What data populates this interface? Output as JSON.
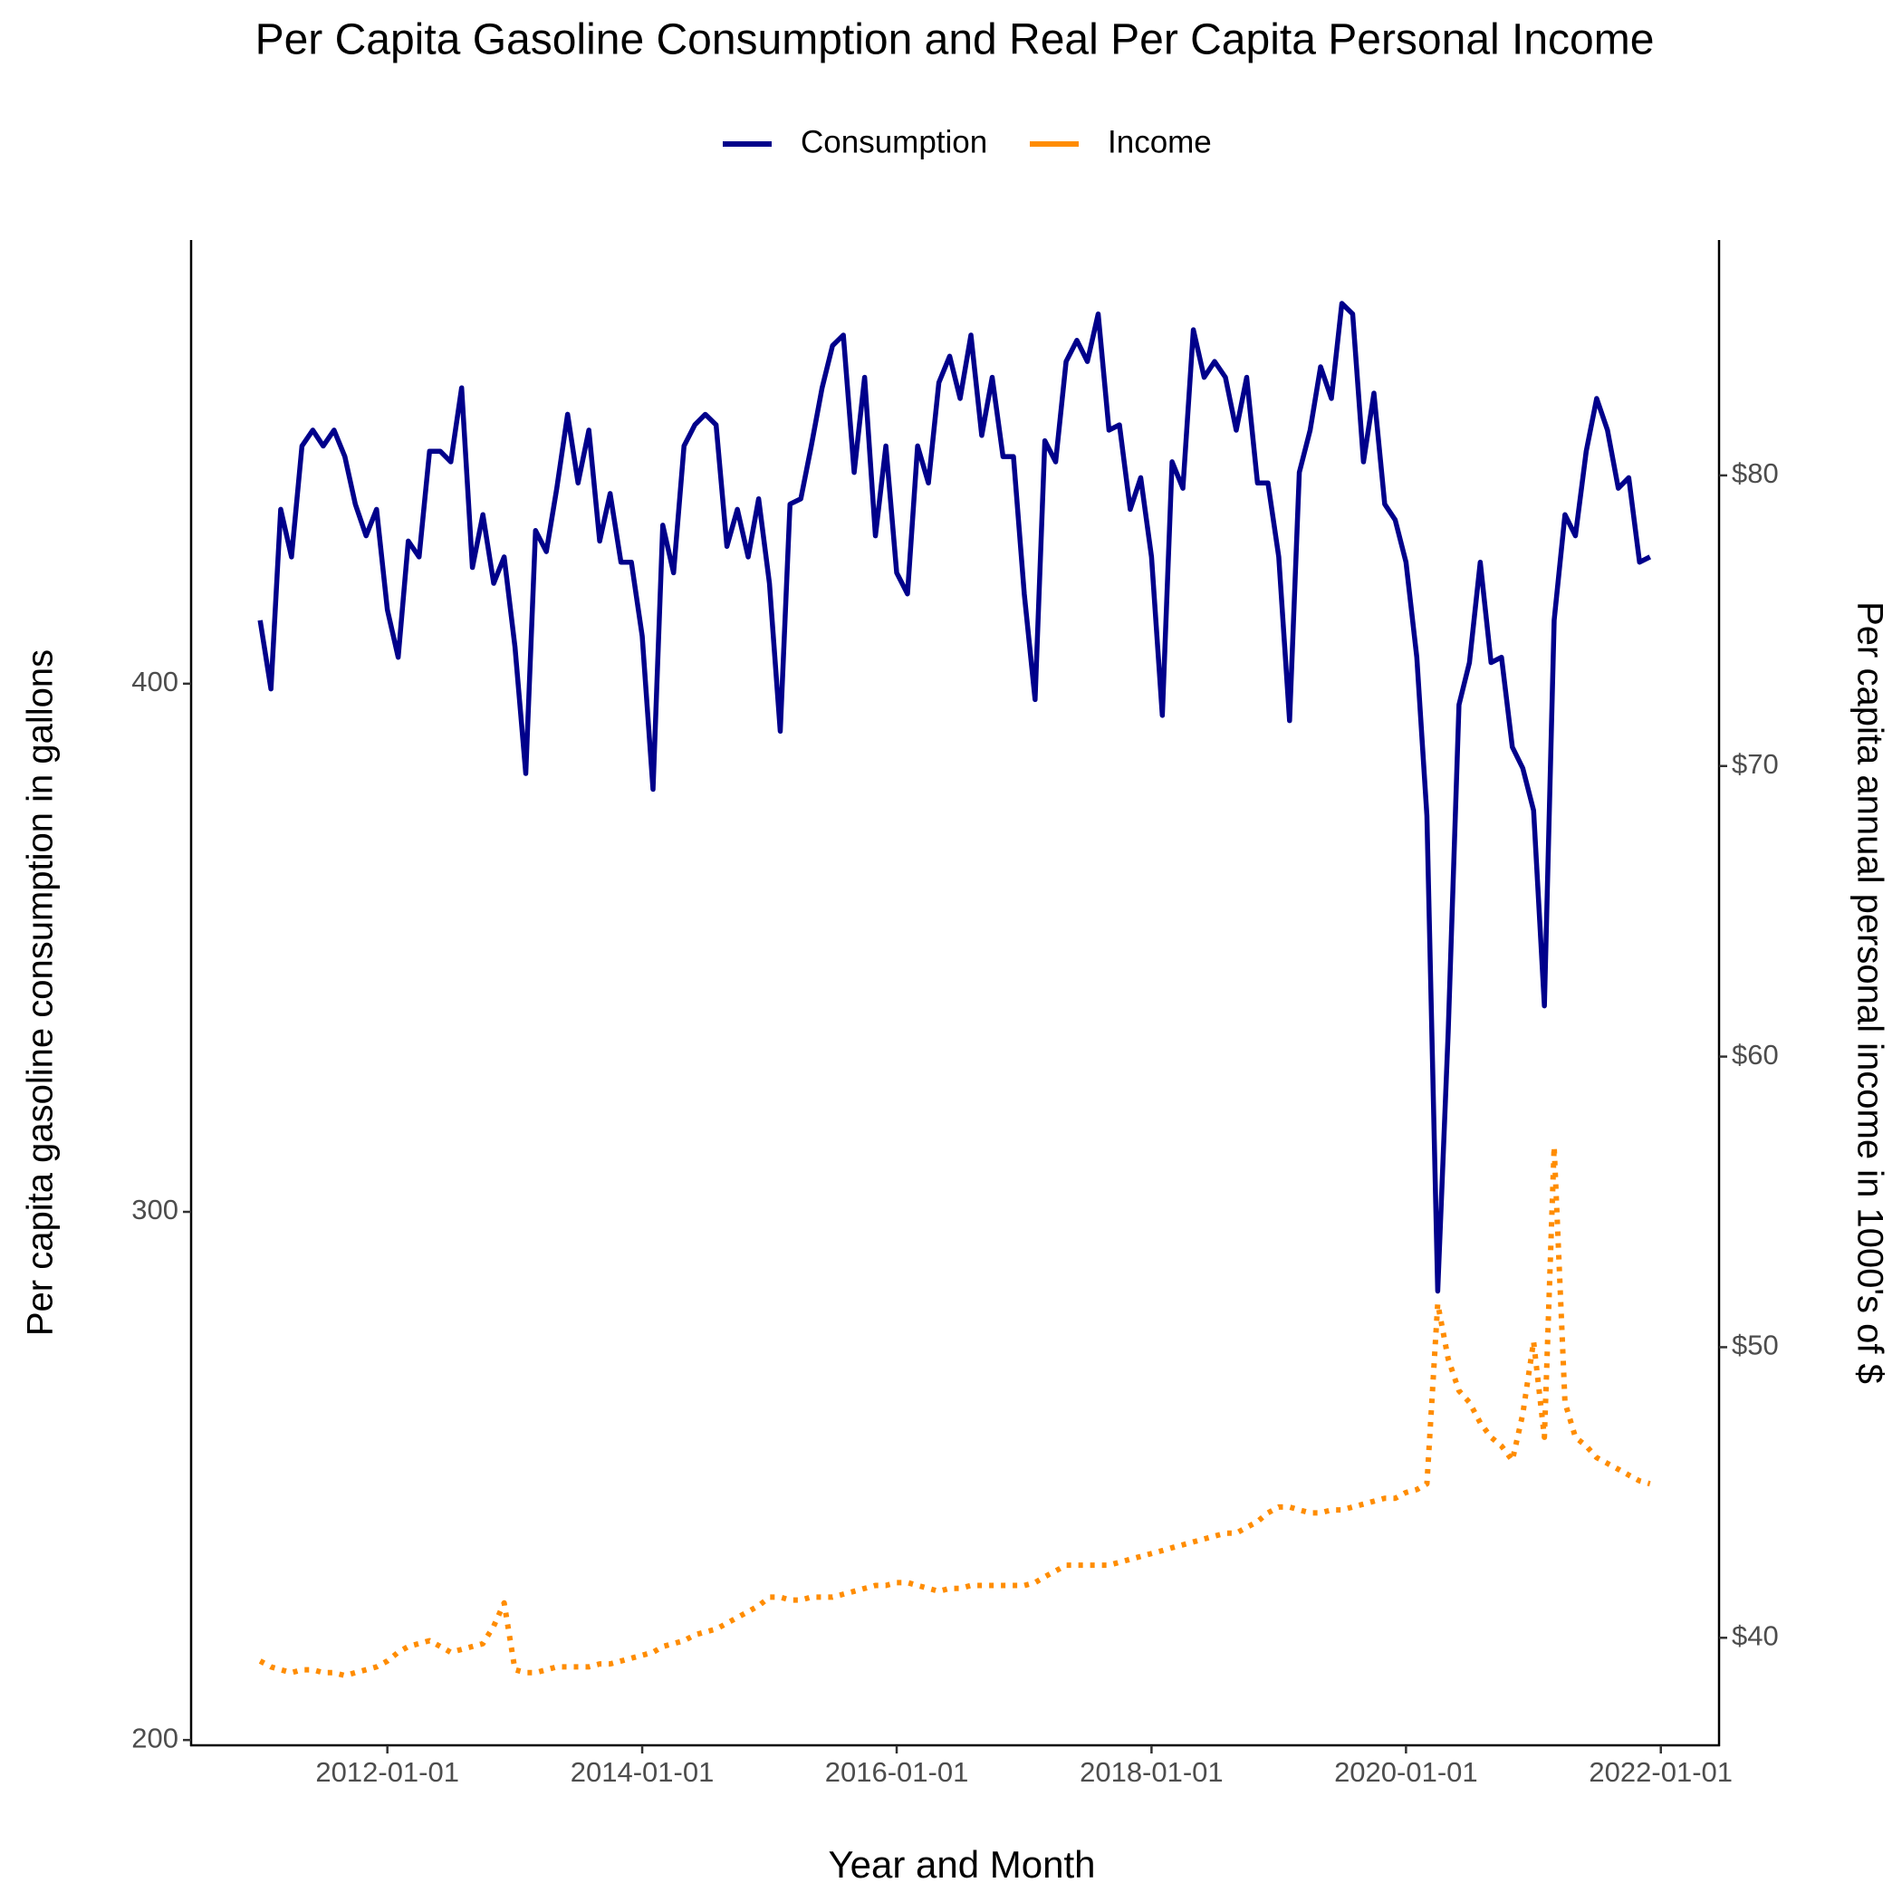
{
  "chart_data": {
    "type": "line",
    "title": "Per Capita Gasoline Consumption and Real Per Capita Personal Income",
    "xlabel": "Year and Month",
    "ylabel": "Per capita gasoline consumption in gallons",
    "y2label": "Per capita annual personal income in 1000's of $",
    "legend": "top",
    "grid": false,
    "x": [
      "2011-01-01",
      "2011-02-01",
      "2011-03-01",
      "2011-04-01",
      "2011-05-01",
      "2011-06-01",
      "2011-07-01",
      "2011-08-01",
      "2011-09-01",
      "2011-10-01",
      "2011-11-01",
      "2011-12-01",
      "2012-01-01",
      "2012-02-01",
      "2012-03-01",
      "2012-04-01",
      "2012-05-01",
      "2012-06-01",
      "2012-07-01",
      "2012-08-01",
      "2012-09-01",
      "2012-10-01",
      "2012-11-01",
      "2012-12-01",
      "2013-01-01",
      "2013-02-01",
      "2013-03-01",
      "2013-04-01",
      "2013-05-01",
      "2013-06-01",
      "2013-07-01",
      "2013-08-01",
      "2013-09-01",
      "2013-10-01",
      "2013-11-01",
      "2013-12-01",
      "2014-01-01",
      "2014-02-01",
      "2014-03-01",
      "2014-04-01",
      "2014-05-01",
      "2014-06-01",
      "2014-07-01",
      "2014-08-01",
      "2014-09-01",
      "2014-10-01",
      "2014-11-01",
      "2014-12-01",
      "2015-01-01",
      "2015-02-01",
      "2015-03-01",
      "2015-04-01",
      "2015-05-01",
      "2015-06-01",
      "2015-07-01",
      "2015-08-01",
      "2015-09-01",
      "2015-10-01",
      "2015-11-01",
      "2015-12-01",
      "2016-01-01",
      "2016-02-01",
      "2016-03-01",
      "2016-04-01",
      "2016-05-01",
      "2016-06-01",
      "2016-07-01",
      "2016-08-01",
      "2016-09-01",
      "2016-10-01",
      "2016-11-01",
      "2016-12-01",
      "2017-01-01",
      "2017-02-01",
      "2017-03-01",
      "2017-04-01",
      "2017-05-01",
      "2017-06-01",
      "2017-07-01",
      "2017-08-01",
      "2017-09-01",
      "2017-10-01",
      "2017-11-01",
      "2017-12-01",
      "2018-01-01",
      "2018-02-01",
      "2018-03-01",
      "2018-04-01",
      "2018-05-01",
      "2018-06-01",
      "2018-07-01",
      "2018-08-01",
      "2018-09-01",
      "2018-10-01",
      "2018-11-01",
      "2018-12-01",
      "2019-01-01",
      "2019-02-01",
      "2019-03-01",
      "2019-04-01",
      "2019-05-01",
      "2019-06-01",
      "2019-07-01",
      "2019-08-01",
      "2019-09-01",
      "2019-10-01",
      "2019-11-01",
      "2019-12-01",
      "2020-01-01",
      "2020-02-01",
      "2020-03-01",
      "2020-04-01",
      "2020-05-01",
      "2020-06-01",
      "2020-07-01",
      "2020-08-01",
      "2020-09-01",
      "2020-10-01",
      "2020-11-01",
      "2020-12-01",
      "2021-01-01",
      "2021-02-01",
      "2021-03-01",
      "2021-04-01",
      "2021-05-01",
      "2021-06-01",
      "2021-07-01",
      "2021-08-01",
      "2021-09-01",
      "2021-10-01",
      "2021-11-01",
      "2021-12-01"
    ],
    "series": [
      {
        "name": "Consumption",
        "color": "#00008B",
        "dash": "solid",
        "values": [
          412,
          399,
          433,
          424,
          445,
          448,
          445,
          448,
          443,
          434,
          428,
          433,
          414,
          405,
          427,
          424,
          444,
          444,
          442,
          456,
          422,
          432,
          419,
          424,
          407,
          383,
          429,
          425,
          437,
          451,
          438,
          448,
          427,
          436,
          423,
          423,
          409,
          380,
          430,
          421,
          445,
          449,
          451,
          449,
          426,
          433,
          424,
          435,
          419,
          391,
          434,
          435,
          445,
          456,
          464,
          466,
          440,
          458,
          428,
          445,
          421,
          417,
          445,
          438,
          457,
          462,
          454,
          466,
          447,
          458,
          443,
          443,
          417,
          397,
          446,
          442,
          461,
          465,
          461,
          470,
          448,
          449,
          433,
          439,
          424,
          394,
          442,
          437,
          467,
          458,
          461,
          458,
          448,
          458,
          438,
          438,
          424,
          393,
          440,
          448,
          460,
          454,
          472,
          470,
          442,
          455,
          434,
          431,
          423,
          405,
          375,
          285,
          334,
          396,
          404,
          423,
          404,
          405,
          388,
          384,
          376,
          339,
          412,
          432,
          428,
          444,
          454,
          448,
          437,
          439,
          423,
          424
        ]
      },
      {
        "name": "Income",
        "color": "#FF8C00",
        "dash": "dotted",
        "axis": "y2",
        "values": [
          39.2,
          39.0,
          38.9,
          38.8,
          38.9,
          38.9,
          38.8,
          38.8,
          38.7,
          38.8,
          38.9,
          39.0,
          39.2,
          39.5,
          39.7,
          39.8,
          39.9,
          39.7,
          39.5,
          39.6,
          39.7,
          39.8,
          40.4,
          41.2,
          38.9,
          38.8,
          38.8,
          38.9,
          39.0,
          39.0,
          39.0,
          39.0,
          39.1,
          39.1,
          39.2,
          39.3,
          39.4,
          39.5,
          39.7,
          39.8,
          39.9,
          40.1,
          40.2,
          40.3,
          40.5,
          40.7,
          40.9,
          41.1,
          41.4,
          41.4,
          41.3,
          41.3,
          41.4,
          41.4,
          41.4,
          41.5,
          41.6,
          41.7,
          41.8,
          41.8,
          41.9,
          41.9,
          41.8,
          41.7,
          41.6,
          41.7,
          41.7,
          41.8,
          41.8,
          41.8,
          41.8,
          41.8,
          41.8,
          41.9,
          42.1,
          42.3,
          42.5,
          42.5,
          42.5,
          42.5,
          42.5,
          42.6,
          42.7,
          42.8,
          42.9,
          43.0,
          43.1,
          43.2,
          43.3,
          43.4,
          43.5,
          43.6,
          43.6,
          43.8,
          44.0,
          44.3,
          44.5,
          44.5,
          44.4,
          44.3,
          44.3,
          44.4,
          44.4,
          44.5,
          44.6,
          44.7,
          44.8,
          44.8,
          45.0,
          45.1,
          45.3,
          51.5,
          49.6,
          48.5,
          48.1,
          47.4,
          46.9,
          46.6,
          46.1,
          47.7,
          50.2,
          46.9,
          56.9,
          48.1,
          46.9,
          46.6,
          46.2,
          46.0,
          45.8,
          45.6,
          45.4,
          45.3
        ]
      }
    ],
    "xlim": [
      "2010-06-17",
      "2022-06-17"
    ],
    "xticks": [
      "2012-01-01",
      "2014-01-01",
      "2016-01-01",
      "2018-01-01",
      "2020-01-01",
      "2022-01-01"
    ],
    "ylim": [
      199,
      484
    ],
    "yticks": [
      200,
      300,
      400
    ],
    "y2lim": [
      36.3,
      88.1
    ],
    "y2ticks": [
      {
        "value": 40,
        "label": "$40"
      },
      {
        "value": 50,
        "label": "$50"
      },
      {
        "value": 60,
        "label": "$60"
      },
      {
        "value": 70,
        "label": "$70"
      },
      {
        "value": 80,
        "label": "$80"
      }
    ]
  }
}
